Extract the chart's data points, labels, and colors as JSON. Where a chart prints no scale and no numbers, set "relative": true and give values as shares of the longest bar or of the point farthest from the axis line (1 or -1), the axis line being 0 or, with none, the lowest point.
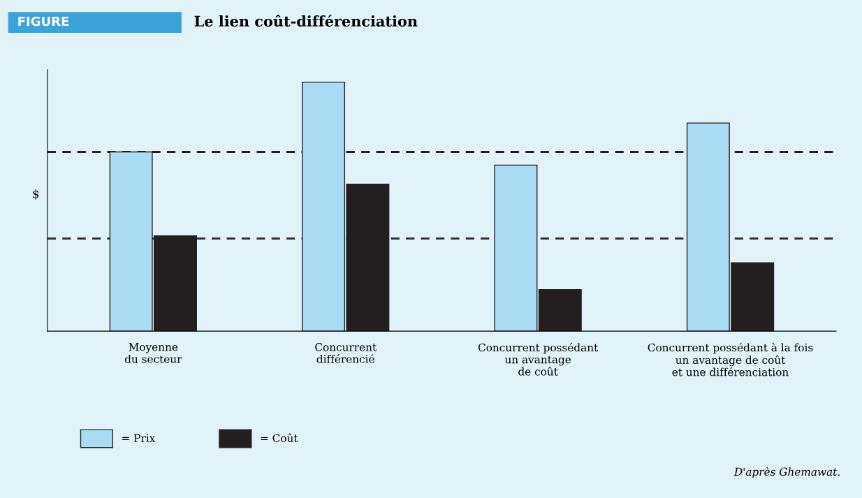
{
  "chart_data": {
    "type": "bar",
    "title": "Le lien coût-différenciation",
    "ylabel": "$",
    "relative": true,
    "categories": [
      "Moyenne\ndu secteur",
      "Concurrent\ndifférencié",
      "Concurrent possédant\nun avantage\nde coût",
      "Concurrent possédant à la fois\nun avantage de coût\net une différenciation"
    ],
    "series": [
      {
        "name": "= Prix",
        "color": "#a9dcf2",
        "values": [
          0.72,
          1,
          0.667,
          0.836
        ]
      },
      {
        "name": "= Coût",
        "color": "#231f20",
        "values": [
          0.383,
          0.59,
          0.167,
          0.275
        ]
      }
    ],
    "ref_lines": [
      {
        "axis": "y",
        "value": 0.72,
        "color": "#222222",
        "line_style": "dashed"
      },
      {
        "axis": "y",
        "value": 0.372,
        "color": "#333333",
        "line_style": "dashed"
      }
    ],
    "legend": "bottom left",
    "grid": false,
    "annotations": [
      "FIGURE",
      "D'après Ghemawat."
    ]
  }
}
